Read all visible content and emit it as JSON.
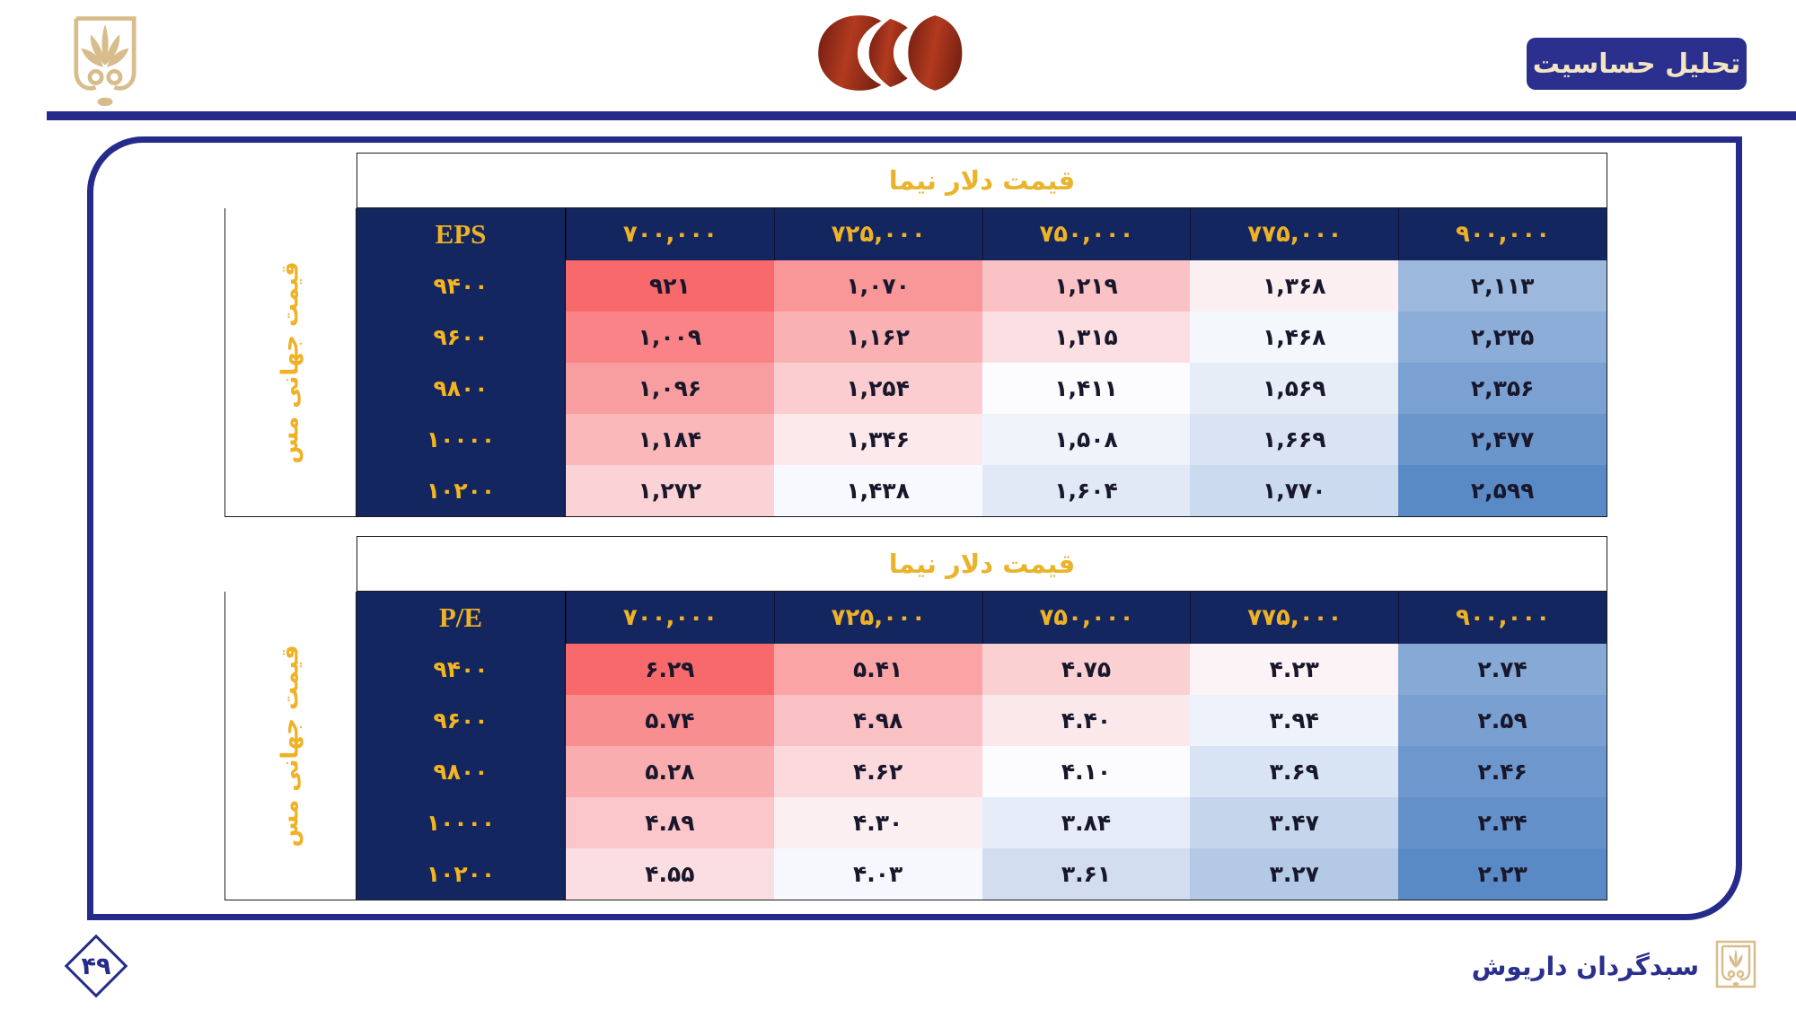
{
  "slide": {
    "title_badge": "تحلیل حساسیت",
    "footer": {
      "page_number": "۴۹",
      "company_name": "سبدگردان داریوش"
    }
  },
  "icons": {
    "top_left": "gold-palmette-emblem-icon",
    "center": "copper-company-swirl-logo-icon",
    "footer": "gold-palmette-emblem-icon"
  },
  "colors": {
    "navy_frame": "#242B8B",
    "navy_header": "#14265F",
    "gold": "#EFB226",
    "badge_text": "#F2E5C3",
    "heat_red": "#F8696B",
    "heat_mid": "#FCFCFF",
    "heat_blue": "#5A8AC6",
    "cell_text": "#18172B"
  },
  "tables": [
    {
      "id": "eps",
      "title": "قیمت دلار نیما",
      "corner_label": "EPS",
      "row_axis_label": "قیمت جهانی مس",
      "col_headers": [
        "۷۰۰,۰۰۰",
        "۷۲۵,۰۰۰",
        "۷۵۰,۰۰۰",
        "۷۷۵,۰۰۰",
        "۹۰۰,۰۰۰"
      ],
      "row_headers": [
        "۹۴۰۰",
        "۹۶۰۰",
        "۹۸۰۰",
        "۱۰۰۰۰",
        "۱۰۲۰۰"
      ],
      "cells_display": [
        [
          "۹۲۱",
          "۱,۰۷۰",
          "۱,۲۱۹",
          "۱,۳۶۸",
          "۲,۱۱۳"
        ],
        [
          "۱,۰۰۹",
          "۱,۱۶۲",
          "۱,۳۱۵",
          "۱,۴۶۸",
          "۲,۲۳۵"
        ],
        [
          "۱,۰۹۶",
          "۱,۲۵۴",
          "۱,۴۱۱",
          "۱,۵۶۹",
          "۲,۳۵۶"
        ],
        [
          "۱,۱۸۴",
          "۱,۳۴۶",
          "۱,۵۰۸",
          "۱,۶۶۹",
          "۲,۴۷۷"
        ],
        [
          "۱,۲۷۲",
          "۱,۴۳۸",
          "۱,۶۰۴",
          "۱,۷۷۰",
          "۲,۵۹۹"
        ]
      ],
      "values": [
        [
          921,
          1070,
          1219,
          1368,
          2113
        ],
        [
          1009,
          1162,
          1315,
          1468,
          2235
        ],
        [
          1096,
          1254,
          1411,
          1569,
          2356
        ],
        [
          1184,
          1346,
          1508,
          1669,
          2477
        ],
        [
          1272,
          1438,
          1604,
          1770,
          2599
        ]
      ],
      "heat_direction": "low_red"
    },
    {
      "id": "pe",
      "title": "قیمت دلار نیما",
      "corner_label": "P/E",
      "row_axis_label": "قیمت جهانی مس",
      "col_headers": [
        "۷۰۰,۰۰۰",
        "۷۲۵,۰۰۰",
        "۷۵۰,۰۰۰",
        "۷۷۵,۰۰۰",
        "۹۰۰,۰۰۰"
      ],
      "row_headers": [
        "۹۴۰۰",
        "۹۶۰۰",
        "۹۸۰۰",
        "۱۰۰۰۰",
        "۱۰۲۰۰"
      ],
      "cells_display": [
        [
          "۶.۲۹",
          "۵.۴۱",
          "۴.۷۵",
          "۴.۲۳",
          "۲.۷۴"
        ],
        [
          "۵.۷۴",
          "۴.۹۸",
          "۴.۴۰",
          "۳.۹۴",
          "۲.۵۹"
        ],
        [
          "۵.۲۸",
          "۴.۶۲",
          "۴.۱۰",
          "۳.۶۹",
          "۲.۴۶"
        ],
        [
          "۴.۸۹",
          "۴.۳۰",
          "۳.۸۴",
          "۳.۴۷",
          "۲.۳۴"
        ],
        [
          "۴.۵۵",
          "۴.۰۳",
          "۳.۶۱",
          "۳.۲۷",
          "۲.۲۳"
        ]
      ],
      "values": [
        [
          6.29,
          5.41,
          4.75,
          4.23,
          2.74
        ],
        [
          5.74,
          4.98,
          4.4,
          3.94,
          2.59
        ],
        [
          5.28,
          4.62,
          4.1,
          3.69,
          2.46
        ],
        [
          4.89,
          4.3,
          3.84,
          3.47,
          2.34
        ],
        [
          4.55,
          4.03,
          3.61,
          3.27,
          2.23
        ]
      ],
      "heat_direction": "high_red"
    }
  ]
}
